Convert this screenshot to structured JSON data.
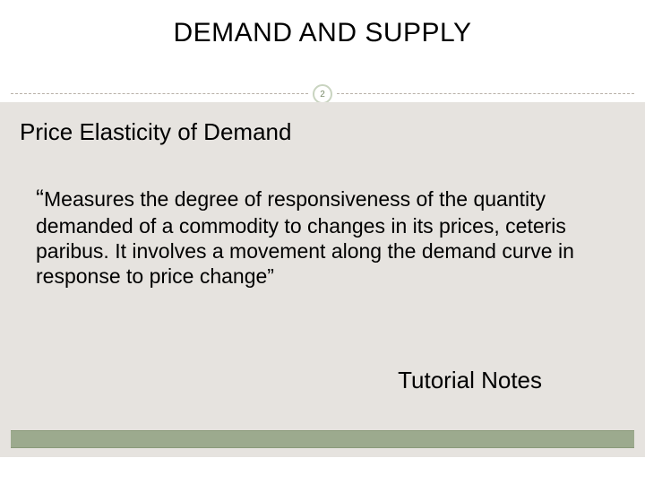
{
  "slide": {
    "title": "DEMAND AND SUPPLY",
    "page_number": "2",
    "subtitle": "Price Elasticity of Demand",
    "body_open_quote": "“",
    "body_text": "Measures the degree of responsiveness of the quantity demanded of a commodity to changes in its prices, ceteris paribus. It involves a movement along the demand curve in response to price change”",
    "footer_label": "Tutorial Notes"
  },
  "style": {
    "background_color": "#ffffff",
    "content_background": "#e6e3df",
    "title_fontsize": 30,
    "subtitle_fontsize": 26,
    "body_fontsize": 23,
    "footer_fontsize": 26,
    "text_color": "#000000",
    "divider_dash_color": "#b8b0a8",
    "page_badge_border": "#c9d4c0",
    "page_badge_text": "#7a8a6a",
    "bottom_bar_color": "#9caa8e",
    "bottom_bar_border": "#8a9a7a"
  }
}
